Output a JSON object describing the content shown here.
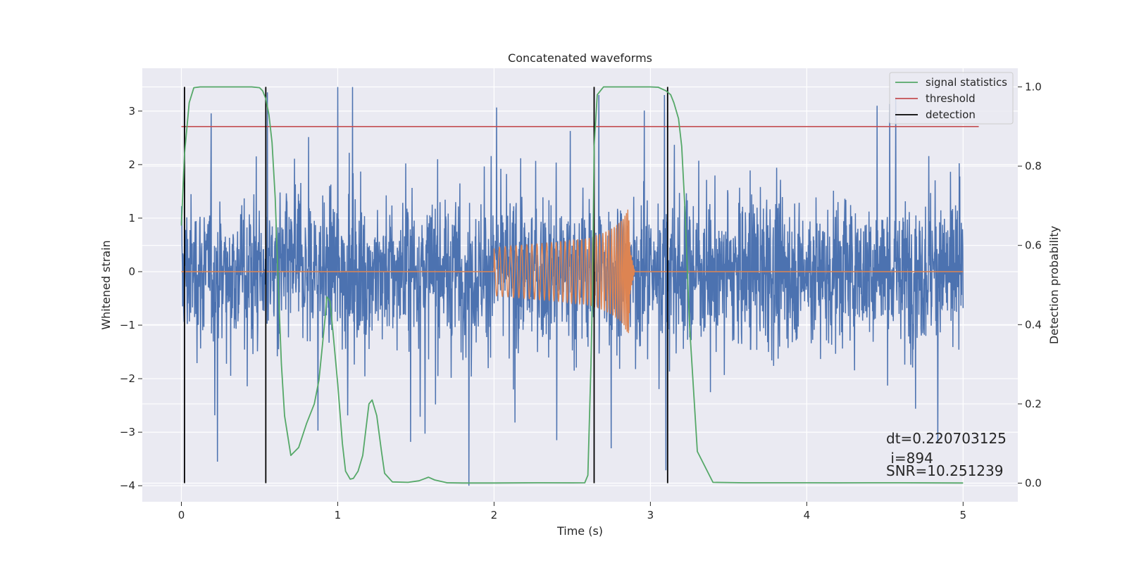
{
  "chart_data": {
    "type": "line",
    "title": "Concatenated waveforms",
    "xlabel": "Time (s)",
    "ylabel": "Whitened strain",
    "y2label": "Detection probability",
    "xlim": [
      -0.25,
      5.35
    ],
    "ylim": [
      -4.3,
      3.8
    ],
    "y2lim": [
      -0.047,
      1.047
    ],
    "xticks": [
      0,
      1,
      2,
      3,
      4,
      5
    ],
    "yticks": [
      -4,
      -3,
      -2,
      -1,
      0,
      1,
      2,
      3
    ],
    "y2ticks": [
      0.0,
      0.2,
      0.4,
      0.6,
      0.8,
      1.0
    ],
    "xtick_labels": [
      "0",
      "1",
      "2",
      "3",
      "4",
      "5"
    ],
    "ytick_labels": [
      "−4",
      "−3",
      "−2",
      "−1",
      "0",
      "1",
      "2",
      "3"
    ],
    "y2tick_labels": [
      "0.0",
      "0.2",
      "0.4",
      "0.6",
      "0.8",
      "1.0"
    ],
    "grid": true,
    "legend_position": "top-right",
    "colors": {
      "strain": "#4c72b0",
      "waveform": "#dd8452",
      "signal": "#55a868",
      "threshold": "#c44e52",
      "detection": "#000000",
      "background": "#eaeaf2"
    },
    "series": [
      {
        "name": "signal statistics",
        "axis": "right",
        "x": [
          0.0,
          0.02,
          0.05,
          0.08,
          0.12,
          0.2,
          0.3,
          0.4,
          0.45,
          0.5,
          0.52,
          0.54,
          0.56,
          0.58,
          0.6,
          0.62,
          0.64,
          0.66,
          0.7,
          0.75,
          0.8,
          0.85,
          0.88,
          0.9,
          0.92,
          0.93,
          0.95,
          0.97,
          1.0,
          1.03,
          1.05,
          1.08,
          1.1,
          1.13,
          1.16,
          1.2,
          1.22,
          1.25,
          1.28,
          1.3,
          1.35,
          1.45,
          1.52,
          1.56,
          1.58,
          1.62,
          1.7,
          1.8,
          2.0,
          2.3,
          2.5,
          2.58,
          2.6,
          2.62,
          2.63,
          2.64,
          2.66,
          2.7,
          2.8,
          2.9,
          3.0,
          3.05,
          3.1,
          3.13,
          3.15,
          3.18,
          3.2,
          3.22,
          3.25,
          3.3,
          3.4,
          3.6,
          4.0,
          4.2,
          4.4,
          4.6,
          5.0
        ],
        "values": [
          0.65,
          0.83,
          0.96,
          0.998,
          1.0,
          1.0,
          1.0,
          1.0,
          1.0,
          0.998,
          0.99,
          0.97,
          0.93,
          0.86,
          0.72,
          0.5,
          0.3,
          0.17,
          0.07,
          0.09,
          0.15,
          0.2,
          0.26,
          0.34,
          0.42,
          0.47,
          0.46,
          0.38,
          0.25,
          0.1,
          0.03,
          0.01,
          0.012,
          0.03,
          0.07,
          0.2,
          0.21,
          0.17,
          0.08,
          0.025,
          0.003,
          0.002,
          0.006,
          0.012,
          0.015,
          0.008,
          0.001,
          0.0005,
          0.0005,
          0.001,
          0.0008,
          0.001,
          0.02,
          0.3,
          0.5,
          0.85,
          0.98,
          1.0,
          1.0,
          1.0,
          1.0,
          0.999,
          0.99,
          0.98,
          0.96,
          0.92,
          0.85,
          0.7,
          0.4,
          0.08,
          0.002,
          0.001,
          0.001,
          0.0008,
          0.001,
          0.001,
          0.0005
        ]
      },
      {
        "name": "threshold",
        "axis": "right",
        "x": [
          0.0,
          5.1
        ],
        "values": [
          0.9,
          0.9
        ]
      },
      {
        "name": "detection",
        "axis": "right",
        "x": [
          0.02,
          0.54,
          2.64,
          3.11
        ],
        "values": [
          1.0,
          1.0,
          1.0,
          1.0
        ]
      }
    ],
    "strain_noise": {
      "x_range": [
        0.0,
        5.0
      ],
      "band": [
        -1.0,
        1.0
      ],
      "approx_min": -4.0,
      "approx_max": 3.45,
      "spikes": [
        {
          "x": 0.23,
          "y": -3.55
        },
        {
          "x": 1.0,
          "y": 3.45
        },
        {
          "x": 0.55,
          "y": 3.35
        },
        {
          "x": 1.84,
          "y": -4.0
        },
        {
          "x": 2.67,
          "y": 3.3
        },
        {
          "x": 3.09,
          "y": 3.3
        },
        {
          "x": 4.45,
          "y": 3.1
        },
        {
          "x": 2.4,
          "y": -3.15
        },
        {
          "x": 2.75,
          "y": -3.3
        }
      ]
    },
    "injected_waveform": {
      "x": [
        2.0,
        2.2,
        2.4,
        2.6,
        2.7,
        2.78,
        2.83,
        2.86,
        2.87,
        2.9,
        5.0
      ],
      "amplitude": [
        0.45,
        0.5,
        0.55,
        0.62,
        0.72,
        0.85,
        1.0,
        1.2,
        0.4,
        0.0,
        0.0
      ]
    },
    "annotations": [
      "dt=0.220703125",
      " i=894",
      "SNR=10.251239"
    ]
  }
}
